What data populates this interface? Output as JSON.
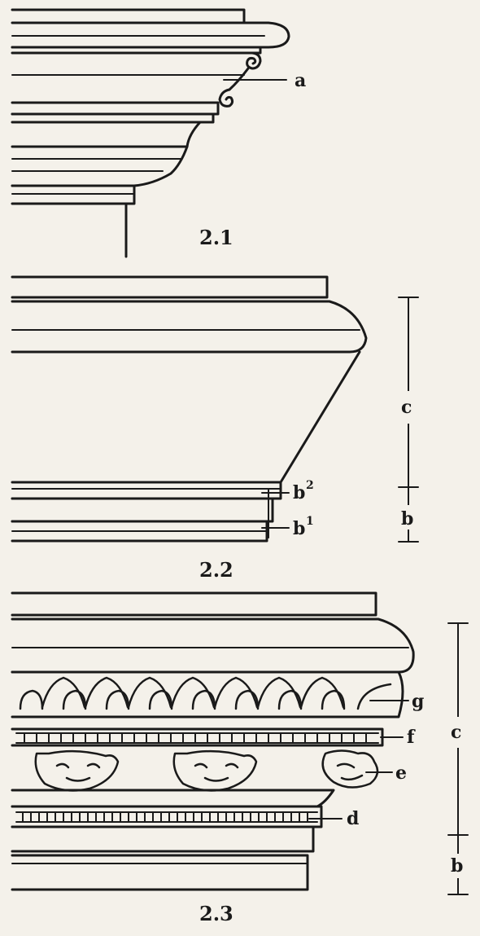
{
  "figures": [
    {
      "id": "2.1",
      "caption": "2.1",
      "labels": {
        "a": "a"
      }
    },
    {
      "id": "2.2",
      "caption": "2.2",
      "labels": {
        "c": "c",
        "b": "b",
        "b2": "b",
        "b2_sup": "2",
        "b1": "b",
        "b1_sup": "1"
      }
    },
    {
      "id": "2.3",
      "caption": "2.3",
      "labels": {
        "c": "c",
        "b": "b",
        "d": "d",
        "e": "e",
        "f": "f",
        "g": "g"
      }
    }
  ],
  "colors": {
    "ink": "#1a1a1a",
    "paper": "#f4f1ea"
  }
}
